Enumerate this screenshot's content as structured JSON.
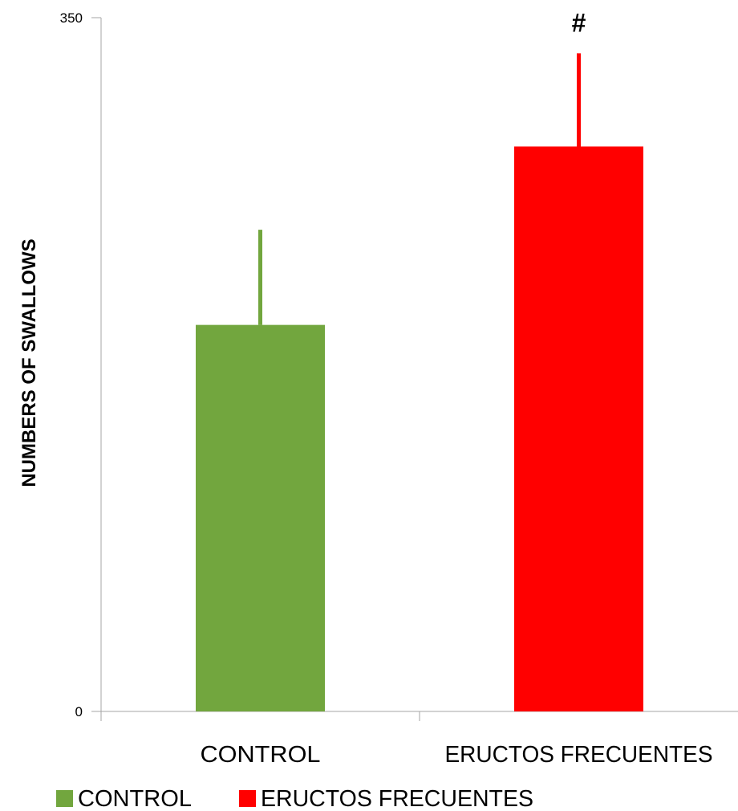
{
  "chart_data": {
    "type": "bar",
    "title": "",
    "ylabel": "NUMBERS OF SWALLOWS",
    "xlabel": "",
    "ylim": [
      0,
      350
    ],
    "y_ticks": [
      "0",
      "350"
    ],
    "categories": [
      "CONTROL",
      "ERUCTOS FRECUENTES"
    ],
    "values": [
      195,
      285
    ],
    "error_upper": [
      48,
      47
    ],
    "annotations": [
      {
        "category": "ERUCTOS FRECUENTES",
        "text": "#"
      }
    ],
    "colors": [
      "#72a63e",
      "#ff0000"
    ],
    "legend": {
      "position": "bottom-left",
      "entries": [
        {
          "label": "CONTROL",
          "color": "#72a63e"
        },
        {
          "label": "ERUCTOS FRECUENTES",
          "color": "#ff0000"
        }
      ]
    },
    "grid": false
  }
}
